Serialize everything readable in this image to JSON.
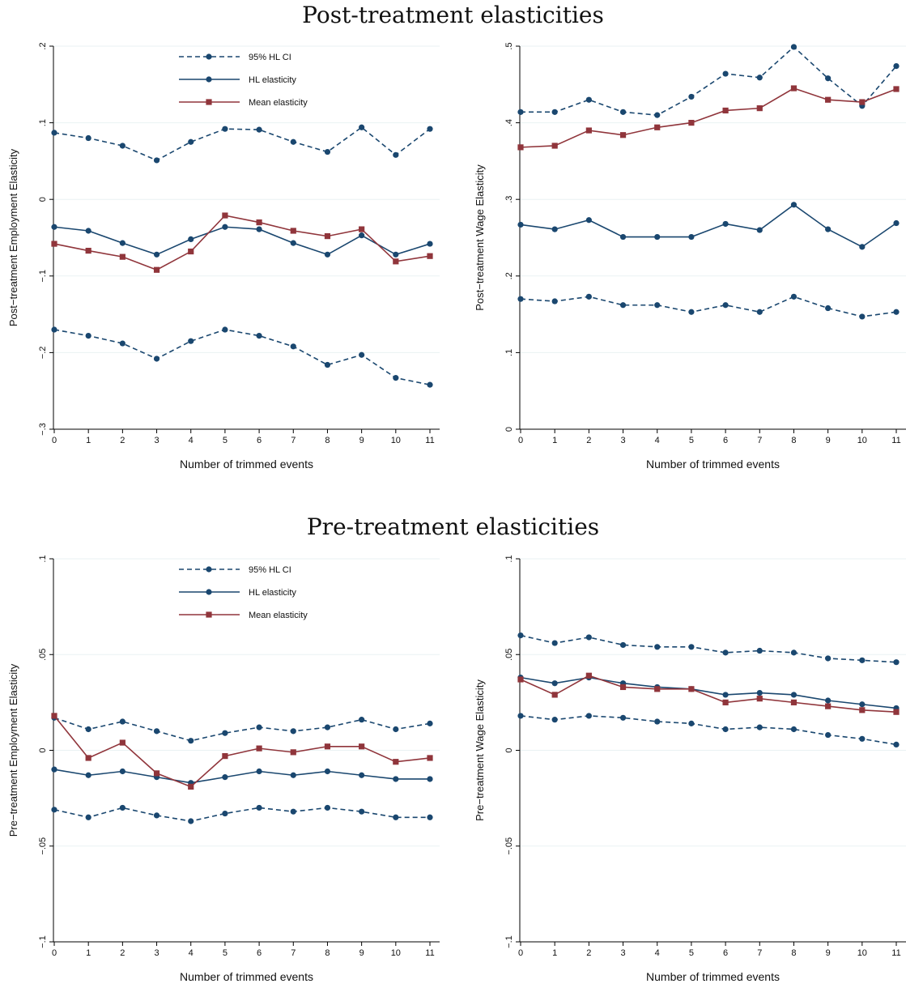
{
  "titles": {
    "top": "Post-treatment elasticities",
    "bottom": "Pre-treatment elasticities"
  },
  "legend": {
    "ci_label": "95% HL CI",
    "hl_label": "HL elasticity",
    "mean_label": "Mean elasticity"
  },
  "colors": {
    "navy": "#1a476f",
    "maroon": "#90353b"
  },
  "chart_data": [
    {
      "type": "line",
      "title": "Post-treatment elasticities",
      "ylabel": "Post−treatment Employment Elasticity",
      "xlabel": "Number of trimmed events",
      "x": [
        0,
        1,
        2,
        3,
        4,
        5,
        6,
        7,
        8,
        9,
        10,
        11
      ],
      "ylim": [
        -0.3,
        0.2
      ],
      "yticks": [
        -0.3,
        -0.2,
        -0.1,
        0,
        0.1,
        0.2
      ],
      "ytick_labels": [
        "−.3",
        "−.2",
        "−.1",
        "0",
        ".1",
        ".2"
      ],
      "legend": "top-center",
      "series": [
        {
          "name": "95% HL CI",
          "values": [
            0.087,
            0.08,
            0.07,
            0.051,
            0.075,
            0.092,
            0.091,
            0.075,
            0.062,
            0.094,
            0.058,
            0.092
          ]
        },
        {
          "name": "HL elasticity",
          "values": [
            -0.036,
            -0.041,
            -0.057,
            -0.072,
            -0.052,
            -0.036,
            -0.039,
            -0.057,
            -0.072,
            -0.047,
            -0.072,
            -0.058
          ]
        },
        {
          "name": "Mean elasticity",
          "values": [
            -0.058,
            -0.067,
            -0.075,
            -0.092,
            -0.068,
            -0.021,
            -0.03,
            -0.041,
            -0.048,
            -0.039,
            -0.081,
            -0.074
          ]
        },
        {
          "name": "95% HL CI",
          "values": [
            -0.17,
            -0.178,
            -0.188,
            -0.208,
            -0.185,
            -0.17,
            -0.178,
            -0.192,
            -0.216,
            -0.203,
            -0.233,
            -0.242
          ]
        }
      ]
    },
    {
      "type": "line",
      "ylabel": "Post−treatment Wage Elasticity",
      "xlabel": "Number of trimmed events",
      "x": [
        0,
        1,
        2,
        3,
        4,
        5,
        6,
        7,
        8,
        9,
        10,
        11
      ],
      "ylim": [
        0,
        0.5
      ],
      "yticks": [
        0,
        0.1,
        0.2,
        0.3,
        0.4,
        0.5
      ],
      "ytick_labels": [
        "0",
        ".1",
        ".2",
        ".3",
        ".4",
        ".5"
      ],
      "series": [
        {
          "name": "95% HL CI",
          "values": [
            0.414,
            0.414,
            0.43,
            0.414,
            0.41,
            0.434,
            0.464,
            0.459,
            0.499,
            0.458,
            0.422,
            0.474
          ]
        },
        {
          "name": "HL elasticity",
          "values": [
            0.267,
            0.261,
            0.273,
            0.251,
            0.251,
            0.251,
            0.268,
            0.26,
            0.293,
            0.261,
            0.238,
            0.269
          ]
        },
        {
          "name": "Mean elasticity",
          "values": [
            0.368,
            0.37,
            0.39,
            0.384,
            0.394,
            0.4,
            0.416,
            0.419,
            0.445,
            0.43,
            0.427,
            0.444
          ]
        },
        {
          "name": "95% HL CI",
          "values": [
            0.17,
            0.167,
            0.173,
            0.162,
            0.162,
            0.153,
            0.162,
            0.153,
            0.173,
            0.158,
            0.147,
            0.153
          ]
        }
      ]
    },
    {
      "type": "line",
      "title": "Pre-treatment elasticities",
      "ylabel": "Pre−treatment Employment Elasticity",
      "xlabel": "Number of trimmed events",
      "x": [
        0,
        1,
        2,
        3,
        4,
        5,
        6,
        7,
        8,
        9,
        10,
        11
      ],
      "ylim": [
        -0.1,
        0.1
      ],
      "yticks": [
        -0.1,
        -0.05,
        0,
        0.05,
        0.1
      ],
      "ytick_labels": [
        "−.1",
        "−.05",
        "0",
        ".05",
        ".1"
      ],
      "legend": "top-center",
      "series": [
        {
          "name": "95% HL CI",
          "values": [
            0.017,
            0.011,
            0.015,
            0.01,
            0.005,
            0.009,
            0.012,
            0.01,
            0.012,
            0.016,
            0.011,
            0.014
          ]
        },
        {
          "name": "HL elasticity",
          "values": [
            -0.01,
            -0.013,
            -0.011,
            -0.014,
            -0.017,
            -0.014,
            -0.011,
            -0.013,
            -0.011,
            -0.013,
            -0.015,
            -0.015
          ]
        },
        {
          "name": "Mean elasticity",
          "values": [
            0.018,
            -0.004,
            0.004,
            -0.012,
            -0.019,
            -0.003,
            0.001,
            -0.001,
            0.002,
            0.002,
            -0.006,
            -0.004
          ]
        },
        {
          "name": "95% HL CI",
          "values": [
            -0.031,
            -0.035,
            -0.03,
            -0.034,
            -0.037,
            -0.033,
            -0.03,
            -0.032,
            -0.03,
            -0.032,
            -0.035,
            -0.035
          ]
        }
      ]
    },
    {
      "type": "line",
      "ylabel": "Pre−treatment Wage Elasticity",
      "xlabel": "Number of trimmed events",
      "x": [
        0,
        1,
        2,
        3,
        4,
        5,
        6,
        7,
        8,
        9,
        10,
        11
      ],
      "ylim": [
        -0.1,
        0.1
      ],
      "yticks": [
        -0.1,
        -0.05,
        0,
        0.05,
        0.1
      ],
      "ytick_labels": [
        "−.1",
        "−.05",
        "0",
        ".05",
        ".1"
      ],
      "series": [
        {
          "name": "95% HL CI",
          "values": [
            0.06,
            0.056,
            0.059,
            0.055,
            0.054,
            0.054,
            0.051,
            0.052,
            0.051,
            0.048,
            0.047,
            0.046
          ]
        },
        {
          "name": "HL elasticity",
          "values": [
            0.038,
            0.035,
            0.038,
            0.035,
            0.033,
            0.032,
            0.029,
            0.03,
            0.029,
            0.026,
            0.024,
            0.022
          ]
        },
        {
          "name": "Mean elasticity",
          "values": [
            0.037,
            0.029,
            0.039,
            0.033,
            0.032,
            0.032,
            0.025,
            0.027,
            0.025,
            0.023,
            0.021,
            0.02
          ]
        },
        {
          "name": "95% HL CI",
          "values": [
            0.018,
            0.016,
            0.018,
            0.017,
            0.015,
            0.014,
            0.011,
            0.012,
            0.011,
            0.008,
            0.006,
            0.003
          ]
        }
      ]
    }
  ]
}
